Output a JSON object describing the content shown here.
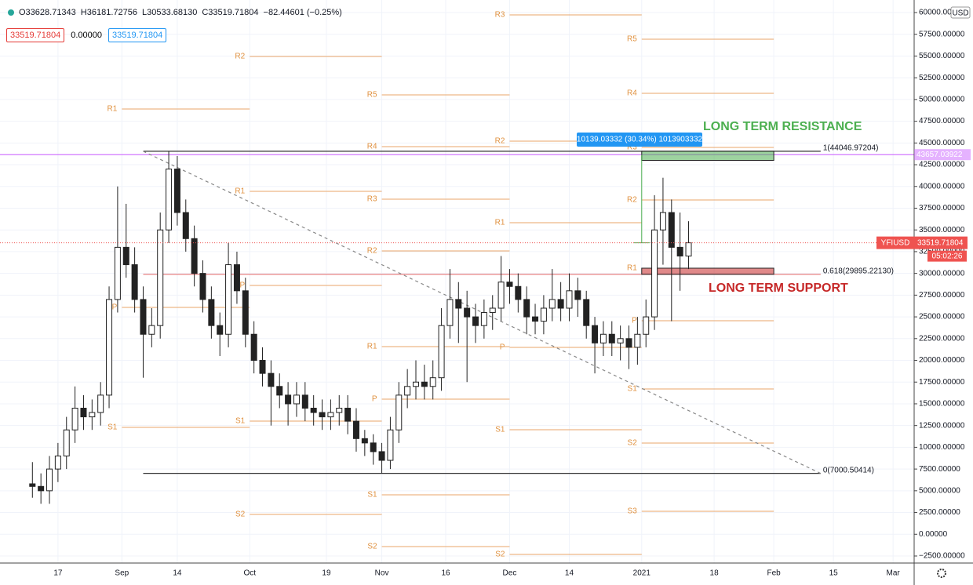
{
  "header": {
    "ohlc": [
      "O33628.71343",
      "H36181.72756",
      "L30533.68130",
      "C33519.71804"
    ],
    "change": "−82.44601 (−0.25%)"
  },
  "boxes": [
    "33519.71804",
    "0.00000",
    "33519.71804"
  ],
  "chart_data": {
    "type": "candlestick",
    "xticks": [
      "17",
      "Sep",
      "14",
      "Oct",
      "19",
      "Nov",
      "16",
      "Dec",
      "14",
      "2021",
      "18",
      "Feb",
      "15",
      "Mar"
    ],
    "ylim": [
      -2500,
      60000
    ],
    "yticks": [
      {
        "value": 60000,
        "label": "60000.00000"
      },
      {
        "value": 57500,
        "label": "57500.00000"
      },
      {
        "value": 55000,
        "label": "55000.00000"
      },
      {
        "value": 52500,
        "label": "52500.00000"
      },
      {
        "value": 50000,
        "label": "50000.00000"
      },
      {
        "value": 47500,
        "label": "47500.00000"
      },
      {
        "value": 45000,
        "label": "45000.00000"
      },
      {
        "value": 42500,
        "label": "42500.00000"
      },
      {
        "value": 40000,
        "label": "40000.00000"
      },
      {
        "value": 37500,
        "label": "37500.00000"
      },
      {
        "value": 35000,
        "label": "35000.00000"
      },
      {
        "value": 32500,
        "label": "32500.00000"
      },
      {
        "value": 30000,
        "label": "30000.00000"
      },
      {
        "value": 27500,
        "label": "27500.00000"
      },
      {
        "value": 25000,
        "label": "25000.00000"
      },
      {
        "value": 22500,
        "label": "22500.00000"
      },
      {
        "value": 20000,
        "label": "20000.00000"
      },
      {
        "value": 17500,
        "label": "17500.00000"
      },
      {
        "value": 15000,
        "label": "15000.00000"
      },
      {
        "value": 12500,
        "label": "12500.00000"
      },
      {
        "value": 10000,
        "label": "10000.00000"
      },
      {
        "value": 7500,
        "label": "7500.00000"
      },
      {
        "value": 5000,
        "label": "5000.00000"
      },
      {
        "value": 2500,
        "label": "2500.00000"
      },
      {
        "value": 0,
        "label": "0.00000"
      },
      {
        "value": -2500,
        "label": "−2500.00000"
      }
    ],
    "currency": "USD",
    "grid": true,
    "candles": [
      [
        5800,
        8300,
        4200,
        5500
      ],
      [
        5500,
        7000,
        3500,
        5000
      ],
      [
        5000,
        9000,
        3500,
        7500
      ],
      [
        7500,
        10500,
        6000,
        9000
      ],
      [
        9000,
        13500,
        7500,
        12000
      ],
      [
        12000,
        17000,
        10500,
        14500
      ],
      [
        14500,
        16000,
        12000,
        13500
      ],
      [
        13500,
        15500,
        12000,
        14000
      ],
      [
        14000,
        17500,
        12500,
        16000
      ],
      [
        16000,
        28500,
        14500,
        27000
      ],
      [
        27000,
        40000,
        25500,
        33000
      ],
      [
        33000,
        38000,
        29500,
        31000
      ],
      [
        31000,
        33000,
        25500,
        27000
      ],
      [
        27000,
        28500,
        18000,
        23000
      ],
      [
        23000,
        26000,
        21500,
        24000
      ],
      [
        24000,
        37000,
        22500,
        35000
      ],
      [
        35000,
        44047,
        33500,
        42000
      ],
      [
        42000,
        43500,
        35500,
        37000
      ],
      [
        37000,
        38500,
        32500,
        34000
      ],
      [
        34000,
        35500,
        28500,
        30000
      ],
      [
        30000,
        31500,
        25500,
        27000
      ],
      [
        27000,
        28500,
        22500,
        24000
      ],
      [
        24000,
        25500,
        20500,
        23000
      ],
      [
        23000,
        33500,
        21500,
        31000
      ],
      [
        31000,
        32500,
        26500,
        28000
      ],
      [
        28000,
        29500,
        21500,
        23000
      ],
      [
        23000,
        24500,
        18500,
        20000
      ],
      [
        20000,
        21500,
        17000,
        18500
      ],
      [
        18500,
        20000,
        12500,
        17000
      ],
      [
        17000,
        18500,
        14500,
        16000
      ],
      [
        16000,
        17500,
        12500,
        15000
      ],
      [
        15000,
        17500,
        13500,
        16000
      ],
      [
        16000,
        17500,
        13000,
        14500
      ],
      [
        14500,
        16000,
        12500,
        14000
      ],
      [
        14000,
        15500,
        12000,
        13500
      ],
      [
        13500,
        15500,
        12000,
        14000
      ],
      [
        14000,
        16000,
        12500,
        14500
      ],
      [
        14500,
        16000,
        11500,
        13000
      ],
      [
        13000,
        14500,
        9500,
        11000
      ],
      [
        11000,
        12000,
        9000,
        10500
      ],
      [
        10500,
        11500,
        8000,
        9500
      ],
      [
        9500,
        10500,
        7000,
        8500
      ],
      [
        8500,
        13500,
        7500,
        12000
      ],
      [
        12000,
        17500,
        10500,
        16000
      ],
      [
        16000,
        19000,
        14500,
        17000
      ],
      [
        17000,
        20000,
        15500,
        17500
      ],
      [
        17500,
        19500,
        15500,
        17000
      ],
      [
        17000,
        20000,
        15500,
        18000
      ],
      [
        18000,
        26000,
        16500,
        24000
      ],
      [
        24000,
        30500,
        22500,
        27000
      ],
      [
        27000,
        29000,
        22000,
        26000
      ],
      [
        26000,
        28000,
        17500,
        25000
      ],
      [
        25000,
        26500,
        22000,
        24000
      ],
      [
        24000,
        27000,
        22500,
        25500
      ],
      [
        25500,
        27500,
        23500,
        26000
      ],
      [
        26000,
        32000,
        24500,
        29000
      ],
      [
        29000,
        30500,
        26500,
        28500
      ],
      [
        28500,
        30000,
        25500,
        27000
      ],
      [
        27000,
        28500,
        23000,
        25000
      ],
      [
        25000,
        26500,
        23000,
        24500
      ],
      [
        24500,
        27500,
        23000,
        26000
      ],
      [
        26000,
        30500,
        24500,
        27000
      ],
      [
        27000,
        29000,
        24500,
        26000
      ],
      [
        26000,
        30000,
        24500,
        28000
      ],
      [
        28000,
        29500,
        25000,
        27000
      ],
      [
        27000,
        28000,
        22500,
        24000
      ],
      [
        24000,
        25000,
        18500,
        22000
      ],
      [
        22000,
        24500,
        20500,
        23000
      ],
      [
        23000,
        24500,
        20500,
        22000
      ],
      [
        22000,
        24000,
        20000,
        22500
      ],
      [
        22500,
        24000,
        19000,
        21500
      ],
      [
        21500,
        25000,
        19500,
        23000
      ],
      [
        23000,
        27000,
        21500,
        25000
      ],
      [
        25000,
        39000,
        23500,
        35000
      ],
      [
        35000,
        41000,
        31000,
        37000
      ],
      [
        37000,
        38500,
        24500,
        33000
      ],
      [
        33000,
        37000,
        28000,
        32000
      ],
      [
        32000,
        36000,
        30500,
        33520
      ]
    ],
    "pivot_periods": [
      {
        "lines": [
          {
            "label": "R1",
            "value": 48907
          },
          {
            "label": "P",
            "value": 26090
          },
          {
            "label": "S1",
            "value": 12290
          }
        ]
      },
      {
        "lines": [
          {
            "label": "R2",
            "value": 54950
          },
          {
            "label": "R1",
            "value": 39437
          },
          {
            "label": "P",
            "value": 28615
          },
          {
            "label": "S1",
            "value": 13012
          },
          {
            "label": "S2",
            "value": 2280
          }
        ]
      },
      {
        "lines": [
          {
            "label": "R5",
            "value": 50530
          },
          {
            "label": "R4",
            "value": 44580
          },
          {
            "label": "R3",
            "value": 38540
          },
          {
            "label": "R2",
            "value": 32584
          },
          {
            "label": "R1",
            "value": 21580
          },
          {
            "label": "P",
            "value": 15540
          },
          {
            "label": "S1",
            "value": 4535
          },
          {
            "label": "S2",
            "value": -1420
          }
        ]
      },
      {
        "lines": [
          {
            "label": "R3",
            "value": 59730
          },
          {
            "label": "R2",
            "value": 45210
          },
          {
            "label": "R1",
            "value": 35830
          },
          {
            "label": "P",
            "value": 21490
          },
          {
            "label": "S1",
            "value": 12020
          },
          {
            "label": "S2",
            "value": -2320
          }
        ]
      },
      {
        "lines": [
          {
            "label": "R5",
            "value": 56930
          },
          {
            "label": "R4",
            "value": 50710
          },
          {
            "label": "R3",
            "value": 44490
          },
          {
            "label": "R2",
            "value": 38445
          },
          {
            "label": "R1",
            "value": 30600
          },
          {
            "label": "P",
            "value": 24560
          },
          {
            "label": "S1",
            "value": 16710
          },
          {
            "label": "S2",
            "value": 10490
          },
          {
            "label": "S3",
            "value": 2640
          }
        ]
      }
    ],
    "fib_levels": [
      {
        "value": 44046.97204,
        "label": "1(44046.97204)"
      },
      {
        "value": 29895.2213,
        "label": "0.618(29895.22130)"
      },
      {
        "value": 7000.50414,
        "label": "0(7000.50414)"
      }
    ],
    "zones": [
      {
        "label": "LONG TERM RESISTANCE",
        "top": 44047,
        "bottom": 43000,
        "color": "#4caf50"
      },
      {
        "label": "LONG TERM SUPPORT",
        "top": 30600,
        "bottom": 29895,
        "color": "#c62828"
      }
    ],
    "measure": {
      "label": "10139.03332 (30.34%) 1013903332",
      "from": 33519.71804,
      "to": 43657.03922
    },
    "alert_price": 43657.03922,
    "symbol": "YFIUSD",
    "last_price": 33519.71804,
    "countdown": "05:02:26"
  }
}
